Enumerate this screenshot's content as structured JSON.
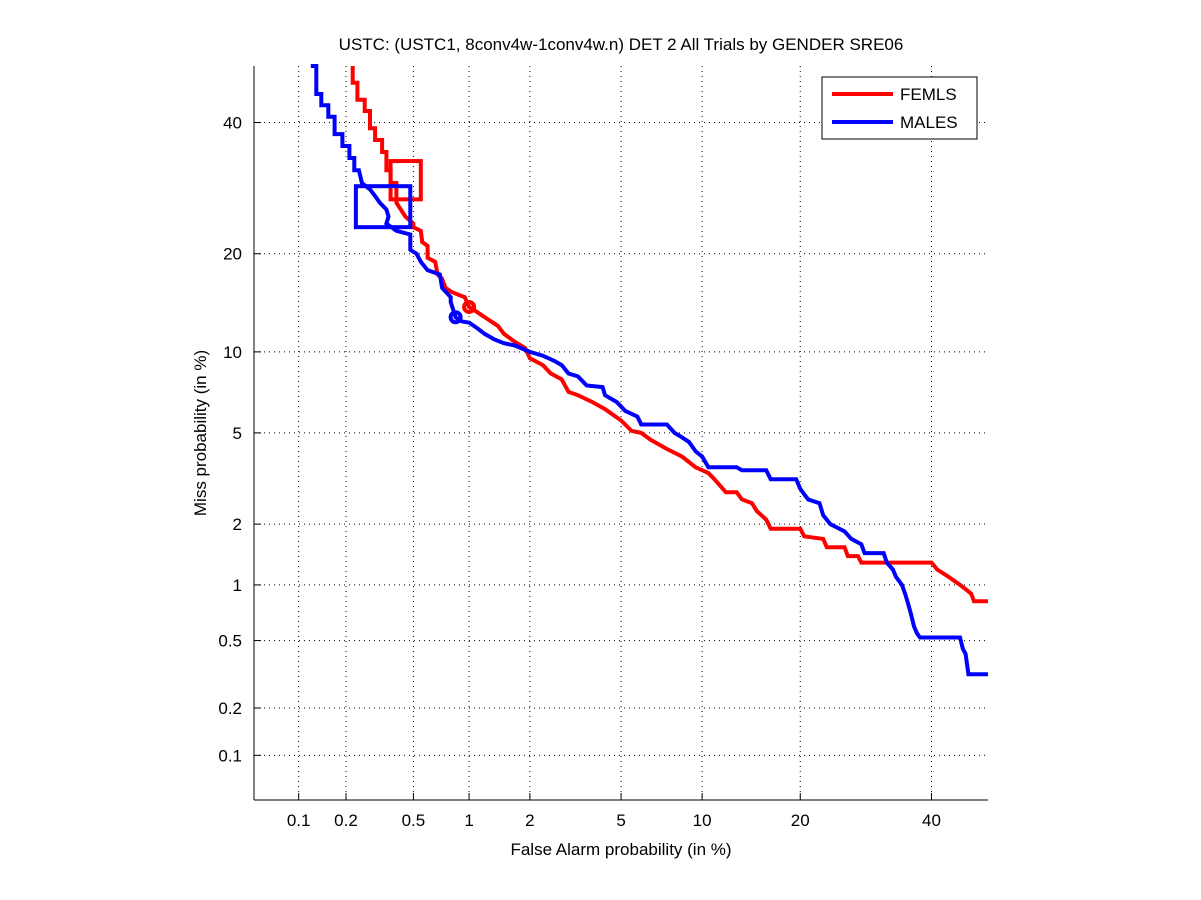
{
  "chart_data": {
    "type": "line",
    "scale": "normal-deviate (DET)",
    "title": "USTC: (USTC1, 8conv4w-1conv4w.n) DET 2 All Trials by GENDER SRE06",
    "xlabel": "False Alarm probability (in %)",
    "ylabel": "Miss probability (in %)",
    "xlim": [
      0.05,
      50
    ],
    "ylim": [
      0.05,
      50
    ],
    "grid": true,
    "legend_position": "top-right",
    "x_ticks": [
      0.1,
      0.2,
      0.5,
      1,
      2,
      5,
      10,
      20,
      40
    ],
    "x_tick_labels": [
      "0.1",
      "0.2",
      "0.5",
      "1",
      "2",
      "5",
      "10",
      "20",
      "40"
    ],
    "y_ticks": [
      0.1,
      0.2,
      0.5,
      1,
      2,
      5,
      10,
      20,
      40
    ],
    "y_tick_labels": [
      "0.1",
      "0.2",
      "0.5",
      "1",
      "2",
      "5",
      "10",
      "20",
      "40"
    ],
    "series": [
      {
        "name": "FEMLS",
        "color": "#ff0000",
        "points": [
          [
            0.22,
            50
          ],
          [
            0.22,
            47
          ],
          [
            0.235,
            47
          ],
          [
            0.235,
            44
          ],
          [
            0.26,
            44
          ],
          [
            0.26,
            42
          ],
          [
            0.28,
            42
          ],
          [
            0.28,
            39
          ],
          [
            0.3,
            39
          ],
          [
            0.3,
            37
          ],
          [
            0.33,
            37
          ],
          [
            0.33,
            35
          ],
          [
            0.35,
            35
          ],
          [
            0.35,
            32
          ],
          [
            0.37,
            32
          ],
          [
            0.37,
            30
          ],
          [
            0.4,
            30
          ],
          [
            0.4,
            27
          ],
          [
            0.45,
            25
          ],
          [
            0.5,
            24
          ],
          [
            0.5,
            23.5
          ],
          [
            0.55,
            23
          ],
          [
            0.56,
            21.5
          ],
          [
            0.6,
            21
          ],
          [
            0.6,
            19.5
          ],
          [
            0.66,
            19
          ],
          [
            0.68,
            17.5
          ],
          [
            0.72,
            17
          ],
          [
            0.75,
            16
          ],
          [
            0.82,
            15.5
          ],
          [
            0.95,
            15
          ],
          [
            1.0,
            14
          ],
          [
            1.1,
            13.5
          ],
          [
            1.25,
            12.8
          ],
          [
            1.4,
            12.2
          ],
          [
            1.5,
            11.5
          ],
          [
            1.7,
            10.8
          ],
          [
            1.9,
            10.3
          ],
          [
            2.0,
            9.5
          ],
          [
            2.3,
            9.0
          ],
          [
            2.5,
            8.4
          ],
          [
            2.8,
            8.0
          ],
          [
            3.0,
            7.2
          ],
          [
            3.3,
            7.0
          ],
          [
            3.8,
            6.6
          ],
          [
            4.3,
            6.2
          ],
          [
            5.0,
            5.6
          ],
          [
            5.5,
            5.1
          ],
          [
            6.0,
            5.0
          ],
          [
            6.5,
            4.7
          ],
          [
            7.5,
            4.3
          ],
          [
            8.5,
            4.0
          ],
          [
            9.5,
            3.6
          ],
          [
            10.5,
            3.4
          ],
          [
            11.0,
            3.2
          ],
          [
            12.0,
            2.8
          ],
          [
            13.0,
            2.8
          ],
          [
            13.5,
            2.6
          ],
          [
            14.5,
            2.5
          ],
          [
            15.0,
            2.3
          ],
          [
            16.0,
            2.1
          ],
          [
            16.5,
            1.9
          ],
          [
            20.0,
            1.9
          ],
          [
            20.5,
            1.75
          ],
          [
            23.0,
            1.7
          ],
          [
            23.5,
            1.55
          ],
          [
            26.0,
            1.55
          ],
          [
            26.5,
            1.4
          ],
          [
            28.0,
            1.4
          ],
          [
            28.5,
            1.3
          ],
          [
            40.0,
            1.3
          ],
          [
            41.0,
            1.2
          ],
          [
            43.0,
            1.1
          ],
          [
            45.0,
            1.0
          ],
          [
            46.0,
            0.95
          ],
          [
            47.0,
            0.9
          ],
          [
            47.5,
            0.82
          ],
          [
            50.0,
            0.82
          ]
        ],
        "operating_point_box": {
          "x_range": [
            0.37,
            0.55
          ],
          "y_range": [
            27.5,
            33.5
          ]
        },
        "min_dcf_point": [
          1.0,
          14
        ]
      },
      {
        "name": "MALES",
        "color": "#0000ff",
        "points": [
          [
            0.12,
            50
          ],
          [
            0.13,
            50
          ],
          [
            0.13,
            45
          ],
          [
            0.14,
            45
          ],
          [
            0.14,
            43
          ],
          [
            0.155,
            43
          ],
          [
            0.155,
            41
          ],
          [
            0.17,
            41
          ],
          [
            0.17,
            38
          ],
          [
            0.19,
            38
          ],
          [
            0.19,
            36
          ],
          [
            0.21,
            36
          ],
          [
            0.21,
            34
          ],
          [
            0.225,
            34
          ],
          [
            0.225,
            32
          ],
          [
            0.24,
            32
          ],
          [
            0.25,
            30
          ],
          [
            0.28,
            29
          ],
          [
            0.3,
            28
          ],
          [
            0.32,
            27
          ],
          [
            0.35,
            26
          ],
          [
            0.36,
            25
          ],
          [
            0.35,
            24
          ],
          [
            0.4,
            23
          ],
          [
            0.48,
            22.5
          ],
          [
            0.48,
            20.5
          ],
          [
            0.52,
            20
          ],
          [
            0.55,
            19
          ],
          [
            0.6,
            18
          ],
          [
            0.7,
            17.5
          ],
          [
            0.72,
            16
          ],
          [
            0.8,
            15
          ],
          [
            0.8,
            14.5
          ],
          [
            0.85,
            13
          ],
          [
            0.92,
            12.6
          ],
          [
            1.0,
            12.5
          ],
          [
            1.1,
            12
          ],
          [
            1.2,
            11.5
          ],
          [
            1.35,
            11
          ],
          [
            1.5,
            10.7
          ],
          [
            1.7,
            10.5
          ],
          [
            2.0,
            10.0
          ],
          [
            2.3,
            9.7
          ],
          [
            2.6,
            9.3
          ],
          [
            2.8,
            9.0
          ],
          [
            3.0,
            8.4
          ],
          [
            3.3,
            8.2
          ],
          [
            3.6,
            7.6
          ],
          [
            4.2,
            7.5
          ],
          [
            4.3,
            7.0
          ],
          [
            4.8,
            6.6
          ],
          [
            5.2,
            6.1
          ],
          [
            5.8,
            5.8
          ],
          [
            6.0,
            5.4
          ],
          [
            7.5,
            5.4
          ],
          [
            8.0,
            5.0
          ],
          [
            8.5,
            4.8
          ],
          [
            9.0,
            4.6
          ],
          [
            9.5,
            4.2
          ],
          [
            10.0,
            4.0
          ],
          [
            10.5,
            3.6
          ],
          [
            13.0,
            3.6
          ],
          [
            13.5,
            3.5
          ],
          [
            16.0,
            3.5
          ],
          [
            16.5,
            3.2
          ],
          [
            19.5,
            3.2
          ],
          [
            20.0,
            2.9
          ],
          [
            21.0,
            2.6
          ],
          [
            22.5,
            2.5
          ],
          [
            23.0,
            2.2
          ],
          [
            24.0,
            2.0
          ],
          [
            26.0,
            1.85
          ],
          [
            27.0,
            1.7
          ],
          [
            28.5,
            1.6
          ],
          [
            29.0,
            1.45
          ],
          [
            32.0,
            1.45
          ],
          [
            32.5,
            1.3
          ],
          [
            33.5,
            1.2
          ],
          [
            34.0,
            1.1
          ],
          [
            35.0,
            1.0
          ],
          [
            35.5,
            0.9
          ],
          [
            36.0,
            0.8
          ],
          [
            36.5,
            0.7
          ],
          [
            37.0,
            0.6
          ],
          [
            37.5,
            0.55
          ],
          [
            38.0,
            0.52
          ],
          [
            45.0,
            0.52
          ],
          [
            45.5,
            0.45
          ],
          [
            46.0,
            0.42
          ],
          [
            46.5,
            0.32
          ],
          [
            50.0,
            0.32
          ]
        ],
        "operating_point_box": {
          "x_range": [
            0.23,
            0.48
          ],
          "y_range": [
            23.5,
            29.5
          ]
        },
        "min_dcf_point": [
          0.85,
          13
        ]
      }
    ]
  }
}
